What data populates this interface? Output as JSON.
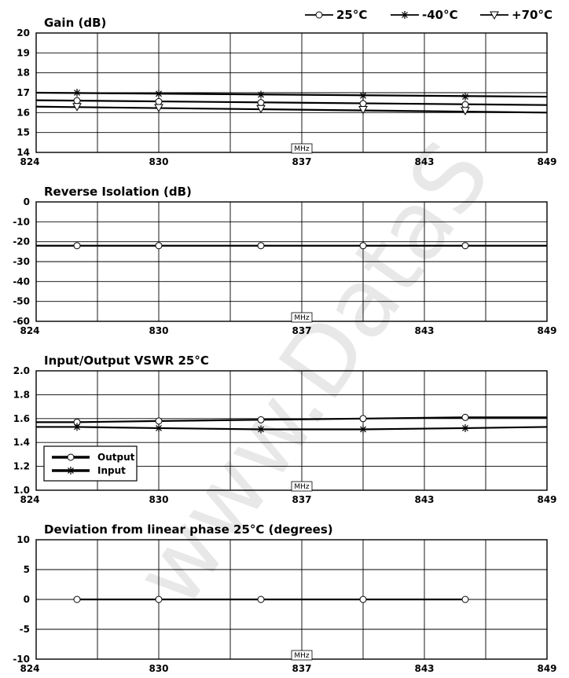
{
  "header_legend": [
    {
      "label": "25°C",
      "marker": "circle"
    },
    {
      "label": "-40°C",
      "marker": "asterisk"
    },
    {
      "label": "+70°C",
      "marker": "triangle-down"
    }
  ],
  "watermark": "www.DataS",
  "chart_data": [
    {
      "type": "line",
      "title": "Gain (dB)",
      "xlabel": "MHz",
      "x_ticks": [
        "824",
        "830",
        "837",
        "843",
        "849"
      ],
      "xlim": [
        824,
        849
      ],
      "ylim": [
        14,
        20
      ],
      "y_ticks": [
        "14",
        "15",
        "16",
        "17",
        "18",
        "19",
        "20"
      ],
      "grid": true,
      "series": [
        {
          "name": "-40°C",
          "marker": "asterisk",
          "x": [
            824,
            849
          ],
          "y": [
            17.0,
            16.8
          ],
          "markers_x": [
            826,
            830,
            835,
            840,
            845
          ],
          "markers_y": [
            17.0,
            16.95,
            16.9,
            16.85,
            16.8
          ]
        },
        {
          "name": "25°C",
          "marker": "circle",
          "x": [
            824,
            849
          ],
          "y": [
            16.62,
            16.38
          ],
          "markers_x": [
            826,
            830,
            835,
            840,
            845
          ],
          "markers_y": [
            16.6,
            16.55,
            16.5,
            16.45,
            16.4
          ]
        },
        {
          "name": "+70°C",
          "marker": "triangle-down",
          "x": [
            824,
            849
          ],
          "y": [
            16.3,
            16.0
          ],
          "markers_x": [
            826,
            830,
            835,
            840,
            845
          ],
          "markers_y": [
            16.3,
            16.25,
            16.2,
            16.15,
            16.1
          ]
        }
      ]
    },
    {
      "type": "line",
      "title": "Reverse Isolation (dB)",
      "xlabel": "MHz",
      "x_ticks": [
        "824",
        "830",
        "837",
        "843",
        "849"
      ],
      "xlim": [
        824,
        849
      ],
      "ylim": [
        -60,
        0
      ],
      "y_ticks": [
        "-60",
        "-50",
        "-40",
        "-30",
        "-20",
        "-10",
        "0"
      ],
      "grid": true,
      "series": [
        {
          "name": "25°C",
          "marker": "circle",
          "x": [
            824,
            849
          ],
          "y": [
            -22,
            -22
          ],
          "markers_x": [
            826,
            830,
            835,
            840,
            845
          ],
          "markers_y": [
            -22,
            -22,
            -22,
            -22,
            -22
          ]
        }
      ]
    },
    {
      "type": "line",
      "title": "Input/Output VSWR 25°C",
      "xlabel": "MHz",
      "x_ticks": [
        "824",
        "830",
        "837",
        "843",
        "849"
      ],
      "xlim": [
        824,
        849
      ],
      "ylim": [
        1.0,
        2.0
      ],
      "y_ticks": [
        "1.0",
        "1.2",
        "1.4",
        "1.6",
        "1.8",
        "2.0"
      ],
      "grid": true,
      "legend": {
        "placement": "bottom-left",
        "entries": [
          {
            "label": "Output",
            "marker": "circle"
          },
          {
            "label": "Input",
            "marker": "asterisk"
          }
        ]
      },
      "series": [
        {
          "name": "Output",
          "marker": "circle",
          "x": [
            824,
            826,
            830,
            835,
            840,
            845,
            849
          ],
          "y": [
            1.57,
            1.57,
            1.58,
            1.59,
            1.6,
            1.61,
            1.61
          ],
          "markers_x": [
            826,
            830,
            835,
            840,
            845
          ],
          "markers_y": [
            1.57,
            1.58,
            1.59,
            1.6,
            1.61
          ]
        },
        {
          "name": "Input",
          "marker": "asterisk",
          "x": [
            824,
            826,
            830,
            835,
            840,
            845,
            849
          ],
          "y": [
            1.53,
            1.53,
            1.52,
            1.51,
            1.51,
            1.52,
            1.53
          ],
          "markers_x": [
            826,
            830,
            835,
            840,
            845
          ],
          "markers_y": [
            1.53,
            1.52,
            1.51,
            1.51,
            1.52
          ]
        }
      ]
    },
    {
      "type": "line",
      "title": "Deviation from linear phase 25°C (degrees)",
      "xlabel": "MHz",
      "x_ticks": [
        "824",
        "830",
        "837",
        "843",
        "849"
      ],
      "xlim": [
        824,
        849
      ],
      "ylim": [
        -10,
        10
      ],
      "y_ticks": [
        "-10",
        "-5",
        "0",
        "5",
        "10"
      ],
      "grid": true,
      "series": [
        {
          "name": "25°C",
          "marker": "circle",
          "x": [
            826,
            845
          ],
          "y": [
            0,
            0
          ],
          "markers_x": [
            826,
            830,
            835,
            840,
            845
          ],
          "markers_y": [
            0,
            0,
            0,
            0,
            0
          ]
        }
      ]
    }
  ]
}
